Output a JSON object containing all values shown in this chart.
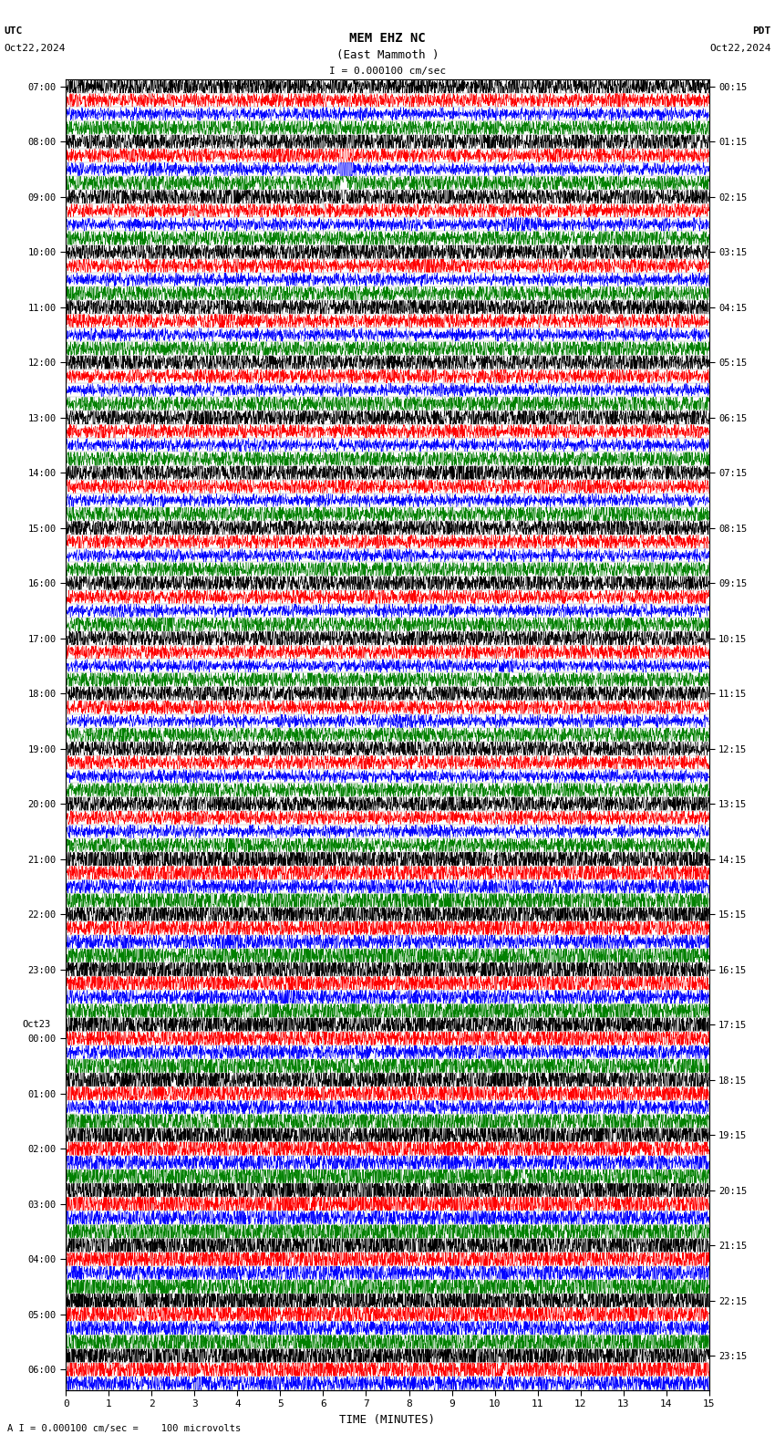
{
  "title_line1": "MEM EHZ NC",
  "title_line2": "(East Mammoth )",
  "scale_label": "I = 0.000100 cm/sec",
  "utc_label": "UTC",
  "utc_date": "Oct22,2024",
  "pdt_label": "PDT",
  "pdt_date": "Oct22,2024",
  "xlabel": "TIME (MINUTES)",
  "bottom_note": "A I = 0.000100 cm/sec =    100 microvolts",
  "left_times": [
    "07:00",
    "",
    "",
    "",
    "08:00",
    "",
    "",
    "",
    "09:00",
    "",
    "",
    "",
    "10:00",
    "",
    "",
    "",
    "11:00",
    "",
    "",
    "",
    "12:00",
    "",
    "",
    "",
    "13:00",
    "",
    "",
    "",
    "14:00",
    "",
    "",
    "",
    "15:00",
    "",
    "",
    "",
    "16:00",
    "",
    "",
    "",
    "17:00",
    "",
    "",
    "",
    "18:00",
    "",
    "",
    "",
    "19:00",
    "",
    "",
    "",
    "20:00",
    "",
    "",
    "",
    "21:00",
    "",
    "",
    "",
    "22:00",
    "",
    "",
    "",
    "23:00",
    "",
    "",
    "",
    "Oct23",
    "00:00",
    "",
    "",
    "",
    "01:00",
    "",
    "",
    "",
    "02:00",
    "",
    "",
    "",
    "03:00",
    "",
    "",
    "",
    "04:00",
    "",
    "",
    "",
    "05:00",
    "",
    "",
    "",
    "06:00",
    "",
    ""
  ],
  "right_times": [
    "00:15",
    "",
    "",
    "",
    "01:15",
    "",
    "",
    "",
    "02:15",
    "",
    "",
    "",
    "03:15",
    "",
    "",
    "",
    "04:15",
    "",
    "",
    "",
    "05:15",
    "",
    "",
    "",
    "06:15",
    "",
    "",
    "",
    "07:15",
    "",
    "",
    "",
    "08:15",
    "",
    "",
    "",
    "09:15",
    "",
    "",
    "",
    "10:15",
    "",
    "",
    "",
    "11:15",
    "",
    "",
    "",
    "12:15",
    "",
    "",
    "",
    "13:15",
    "",
    "",
    "",
    "14:15",
    "",
    "",
    "",
    "15:15",
    "",
    "",
    "",
    "16:15",
    "",
    "",
    "",
    "17:15",
    "",
    "",
    "",
    "18:15",
    "",
    "",
    "",
    "19:15",
    "",
    "",
    "",
    "20:15",
    "",
    "",
    "",
    "21:15",
    "",
    "",
    "",
    "22:15",
    "",
    "",
    "",
    "23:15",
    "",
    ""
  ],
  "colors": [
    "black",
    "red",
    "blue",
    "green"
  ],
  "background_color": "white",
  "grid_color": "#aaaaaa",
  "xmin": 0,
  "xmax": 15,
  "xticks": [
    0,
    1,
    2,
    3,
    4,
    5,
    6,
    7,
    8,
    9,
    10,
    11,
    12,
    13,
    14,
    15
  ],
  "n_rows": 95,
  "fig_width": 8.5,
  "fig_height": 15.84,
  "dpi": 100
}
